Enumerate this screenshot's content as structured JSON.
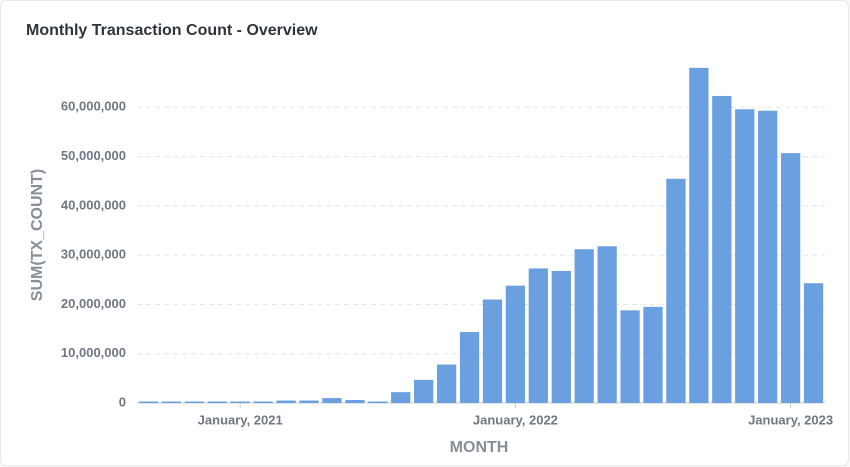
{
  "chart_data": {
    "type": "bar",
    "title": "Monthly Transaction Count - Overview",
    "x_label": "MONTH",
    "y_label": "SUM(TX_COUNT)",
    "categories": [
      null,
      null,
      null,
      null,
      "January, 2021",
      null,
      null,
      null,
      null,
      null,
      null,
      null,
      null,
      null,
      null,
      null,
      "January, 2022",
      null,
      null,
      null,
      null,
      null,
      null,
      null,
      null,
      null,
      null,
      null,
      "January, 2023",
      null
    ],
    "values": [
      300000,
      300000,
      300000,
      300000,
      300000,
      300000,
      500000,
      500000,
      1000000,
      600000,
      300000,
      2200000,
      4700000,
      7800000,
      14400000,
      21000000,
      23800000,
      27300000,
      26800000,
      31200000,
      31800000,
      18800000,
      19500000,
      45500000,
      68000000,
      62300000,
      59600000,
      59300000,
      50700000,
      24300000
    ],
    "color": "#6a9fe0",
    "ylim": [
      0,
      70000000
    ],
    "yticks": [
      0,
      {
        "value": 10000000,
        "label": "10,000,000"
      },
      {
        "value": 20000000,
        "label": "20,000,000"
      },
      {
        "value": 30000000,
        "label": "30,000,000"
      },
      {
        "value": 40000000,
        "label": "40,000,000"
      },
      {
        "value": 50000000,
        "label": "50,000,000"
      },
      {
        "value": 60000000,
        "label": "60,000,000"
      }
    ],
    "grid": true
  }
}
